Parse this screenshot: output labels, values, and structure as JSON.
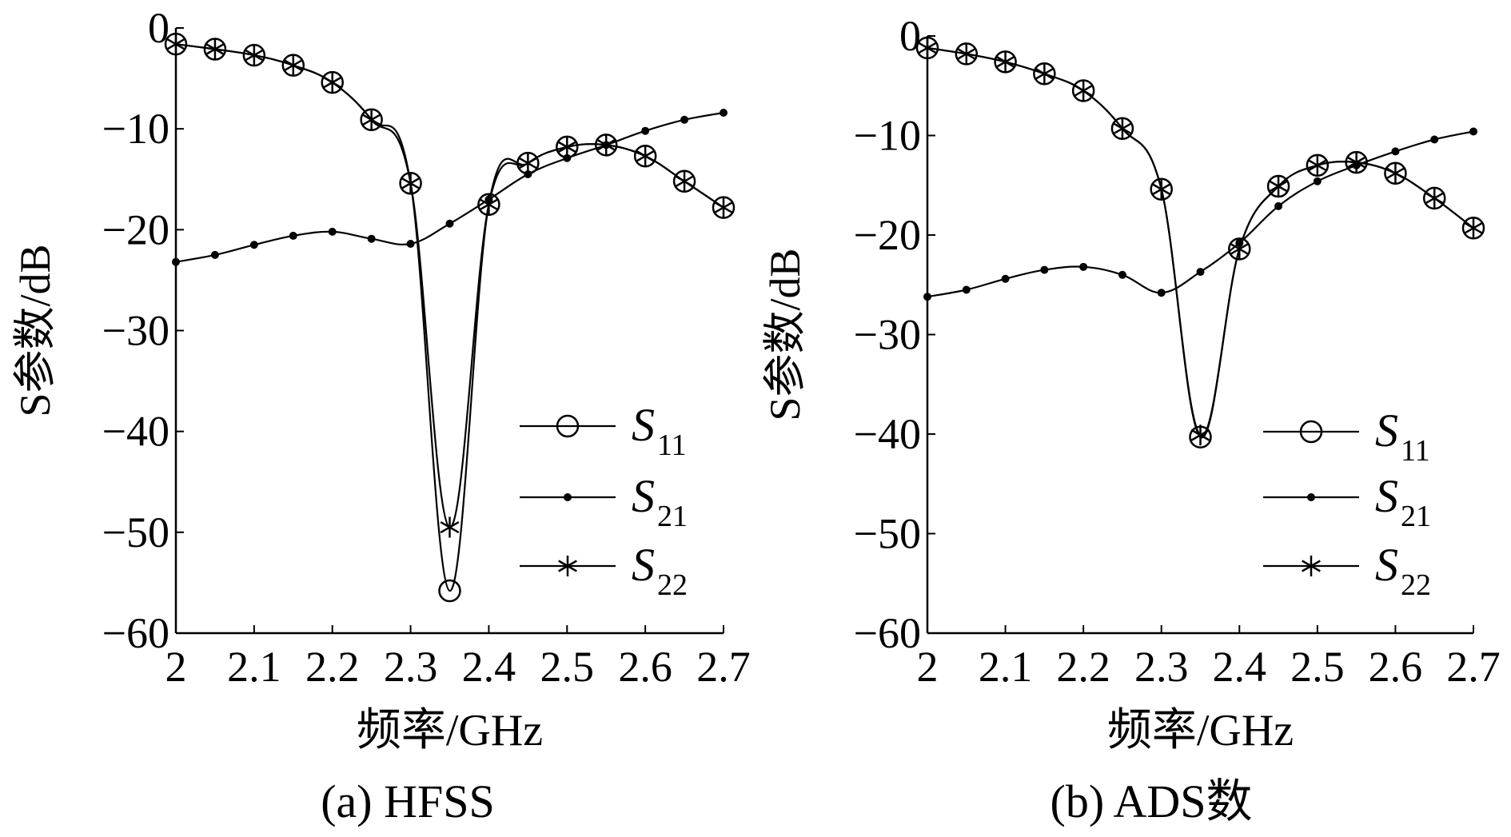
{
  "chart_data": [
    {
      "type": "line",
      "caption": "(a) HFSS",
      "xlabel": "频率/GHz",
      "ylabel": "S参数/dB",
      "xlim": [
        2,
        2.7
      ],
      "ylim": [
        -60,
        0
      ],
      "xticks": [
        "2",
        "2.1",
        "2.2",
        "2.3",
        "2.4",
        "2.5",
        "2.6",
        "2.7"
      ],
      "yticks": [
        "0",
        "−10",
        "−20",
        "−30",
        "−40",
        "−50",
        "−60"
      ],
      "legend_position": "lower-right",
      "legend": [
        {
          "symbol": "circle",
          "main": "S",
          "sub": "11"
        },
        {
          "symbol": "dot",
          "main": "S",
          "sub": "21"
        },
        {
          "symbol": "star",
          "main": "S",
          "sub": "22"
        }
      ],
      "series": [
        {
          "key": "S11",
          "marker": "circle",
          "x": [
            2.0,
            2.05,
            2.1,
            2.15,
            2.2,
            2.25,
            2.3,
            2.35,
            2.4,
            2.45,
            2.5,
            2.55,
            2.6,
            2.65,
            2.7
          ],
          "values": [
            -1.6,
            -2.1,
            -2.7,
            -3.7,
            -5.4,
            -9.1,
            -15.4,
            -55.8,
            -17.5,
            -13.4,
            -11.8,
            -11.6,
            -12.7,
            -15.2,
            -17.8
          ]
        },
        {
          "key": "S21",
          "marker": "dot",
          "x": [
            2.0,
            2.05,
            2.1,
            2.15,
            2.2,
            2.25,
            2.3,
            2.35,
            2.4,
            2.45,
            2.5,
            2.55,
            2.6,
            2.65,
            2.7
          ],
          "values": [
            -23.2,
            -22.5,
            -21.5,
            -20.6,
            -20.2,
            -20.9,
            -21.4,
            -19.4,
            -17.0,
            -14.5,
            -12.9,
            -11.6,
            -10.2,
            -9.1,
            -8.4
          ]
        },
        {
          "key": "S22",
          "marker": "star",
          "x": [
            2.0,
            2.05,
            2.1,
            2.15,
            2.2,
            2.25,
            2.3,
            2.35,
            2.4,
            2.45,
            2.5,
            2.55,
            2.6,
            2.65,
            2.7
          ],
          "values": [
            -1.6,
            -2.1,
            -2.7,
            -3.7,
            -5.4,
            -9.1,
            -15.4,
            -49.5,
            -17.5,
            -13.4,
            -11.8,
            -11.6,
            -12.7,
            -15.2,
            -17.8
          ]
        }
      ]
    },
    {
      "type": "line",
      "caption": "(b) ADS数",
      "xlabel": "频率/GHz",
      "ylabel": "S参数/dB",
      "xlim": [
        2,
        2.7
      ],
      "ylim": [
        -60,
        0
      ],
      "xticks": [
        "2",
        "2.1",
        "2.2",
        "2.3",
        "2.4",
        "2.5",
        "2.6",
        "2.7"
      ],
      "yticks": [
        "0",
        "−10",
        "−20",
        "−30",
        "−40",
        "−50",
        "−60"
      ],
      "legend_position": "lower-right",
      "legend": [
        {
          "symbol": "circle",
          "main": "S",
          "sub": "11"
        },
        {
          "symbol": "dot",
          "main": "S",
          "sub": "21"
        },
        {
          "symbol": "star",
          "main": "S",
          "sub": "22"
        }
      ],
      "series": [
        {
          "key": "S11",
          "marker": "circle",
          "x": [
            2.0,
            2.05,
            2.1,
            2.15,
            2.2,
            2.25,
            2.3,
            2.35,
            2.4,
            2.45,
            2.5,
            2.55,
            2.6,
            2.65,
            2.7
          ],
          "values": [
            -1.2,
            -1.8,
            -2.6,
            -3.8,
            -5.5,
            -9.3,
            -15.4,
            -40.3,
            -21.4,
            -15.1,
            -13.0,
            -12.7,
            -13.8,
            -16.3,
            -19.3
          ]
        },
        {
          "key": "S21",
          "marker": "dot",
          "x": [
            2.0,
            2.05,
            2.1,
            2.15,
            2.2,
            2.25,
            2.3,
            2.35,
            2.4,
            2.45,
            2.5,
            2.55,
            2.6,
            2.65,
            2.7
          ],
          "values": [
            -26.2,
            -25.5,
            -24.4,
            -23.5,
            -23.2,
            -24.0,
            -25.8,
            -23.7,
            -20.8,
            -17.1,
            -14.6,
            -13.0,
            -11.6,
            -10.4,
            -9.6
          ]
        },
        {
          "key": "S22",
          "marker": "star",
          "x": [
            2.0,
            2.05,
            2.1,
            2.15,
            2.2,
            2.25,
            2.3,
            2.35,
            2.4,
            2.45,
            2.5,
            2.55,
            2.6,
            2.65,
            2.7
          ],
          "values": [
            -1.2,
            -1.8,
            -2.6,
            -3.8,
            -5.5,
            -9.3,
            -15.4,
            -40.1,
            -21.4,
            -15.1,
            -13.0,
            -12.7,
            -13.8,
            -16.3,
            -19.3
          ]
        }
      ]
    }
  ]
}
